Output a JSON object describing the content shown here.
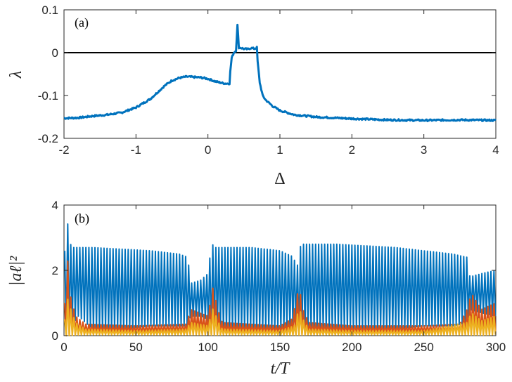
{
  "chart_data": [
    {
      "type": "line",
      "panel_label": "(a)",
      "xlabel": "Δ",
      "ylabel": "λ",
      "xlim": [
        -2,
        4
      ],
      "ylim": [
        -0.2,
        0.1
      ],
      "xticks": [
        -2,
        -1,
        0,
        1,
        2,
        3,
        4
      ],
      "yticks": [
        -0.2,
        -0.1,
        0,
        0.1
      ],
      "xtick_labels": [
        "-2",
        "-1",
        "0",
        "1",
        "2",
        "3",
        "4"
      ],
      "ytick_labels": [
        "-0.2",
        "-0.1",
        "0",
        "0.1"
      ],
      "reference_line_y": 0,
      "grid": false,
      "series": [
        {
          "color": "#0072BD",
          "x": [
            -2,
            -1.8,
            -1.6,
            -1.4,
            -1.2,
            -1.0,
            -0.8,
            -0.6,
            -0.5,
            -0.4,
            -0.3,
            -0.2,
            -0.1,
            0.0,
            0.1,
            0.15,
            0.2,
            0.25,
            0.3,
            0.31,
            0.33,
            0.36,
            0.39,
            0.41,
            0.43,
            0.46,
            0.5,
            0.55,
            0.6,
            0.65,
            0.68,
            0.69,
            0.72,
            0.76,
            0.8,
            0.9,
            1.0,
            1.2,
            1.5,
            2.0,
            2.5,
            3.0,
            3.5,
            4.0
          ],
          "y": [
            -0.153,
            -0.152,
            -0.148,
            -0.145,
            -0.14,
            -0.128,
            -0.108,
            -0.077,
            -0.065,
            -0.059,
            -0.056,
            -0.057,
            -0.058,
            -0.061,
            -0.067,
            -0.069,
            -0.071,
            -0.072,
            -0.072,
            -0.045,
            -0.012,
            0.0,
            0.005,
            0.064,
            0.012,
            0.011,
            0.009,
            0.008,
            0.011,
            0.009,
            0.012,
            -0.02,
            -0.07,
            -0.1,
            -0.11,
            -0.125,
            -0.135,
            -0.145,
            -0.15,
            -0.154,
            -0.157,
            -0.158,
            -0.157,
            -0.158
          ]
        }
      ]
    },
    {
      "type": "line",
      "panel_label": "(b)",
      "xlabel": "t/T",
      "ylabel": "|aℓ|²",
      "xlim": [
        0,
        300
      ],
      "ylim": [
        0,
        4
      ],
      "xticks": [
        0,
        50,
        100,
        150,
        200,
        250,
        300
      ],
      "yticks": [
        0,
        2,
        4
      ],
      "xtick_labels": [
        "0",
        "50",
        "100",
        "150",
        "200",
        "250",
        "300"
      ],
      "ytick_labels": [
        "0",
        "2",
        "4"
      ],
      "grid": false,
      "series": [
        {
          "color": "#0072BD",
          "description_of_envelope": "fast oscillation, period ~2.1",
          "envelope_x": [
            1,
            2,
            5,
            10,
            20,
            40,
            60,
            80,
            86,
            88,
            95,
            100,
            101,
            103,
            105,
            110,
            130,
            150,
            160,
            161,
            163,
            165,
            170,
            190,
            210,
            230,
            250,
            270,
            280,
            282,
            290,
            300
          ],
          "envelope_max": [
            2.6,
            3.6,
            2.7,
            2.7,
            2.7,
            2.65,
            2.6,
            2.5,
            2.4,
            1.6,
            1.7,
            1.9,
            2.3,
            2.8,
            2.7,
            2.7,
            2.7,
            2.6,
            2.4,
            1.5,
            2.6,
            2.8,
            2.8,
            2.8,
            2.75,
            2.7,
            2.6,
            2.5,
            2.4,
            1.8,
            1.9,
            2.0
          ],
          "envelope_min": [
            0.3,
            0.1,
            0.3,
            0.6,
            0.2,
            0.2,
            0.3,
            0.3,
            0.3,
            0.6,
            0.6,
            0.5,
            0.1,
            0.1,
            0.2,
            0.2,
            0.2,
            0.2,
            0.3,
            0.4,
            0.1,
            0.1,
            0.2,
            0.2,
            0.2,
            0.2,
            0.3,
            0.3,
            0.4,
            0.8,
            0.7,
            0.6
          ]
        },
        {
          "color": "#D95319",
          "description_of_envelope": "low oscillation with spikes",
          "envelope_x": [
            1,
            2,
            4,
            8,
            15,
            50,
            85,
            88,
            100,
            102,
            104,
            106,
            110,
            150,
            158,
            160,
            162,
            163,
            166,
            170,
            200,
            250,
            275,
            280,
            283,
            290,
            300
          ],
          "envelope_max": [
            1.0,
            2.7,
            1.3,
            0.6,
            0.35,
            0.3,
            0.35,
            0.8,
            0.6,
            1.1,
            1.6,
            0.9,
            0.4,
            0.3,
            0.5,
            0.8,
            1.2,
            1.6,
            0.8,
            0.4,
            0.3,
            0.3,
            0.35,
            0.8,
            1.3,
            0.8,
            1.0
          ],
          "envelope_min": [
            0.0,
            0.0,
            0.05,
            0.05,
            0.08,
            0.1,
            0.1,
            0.1,
            0.1,
            0.05,
            0.05,
            0.05,
            0.08,
            0.1,
            0.1,
            0.05,
            0.05,
            0.05,
            0.05,
            0.08,
            0.1,
            0.1,
            0.1,
            0.1,
            0.05,
            0.05,
            0.1
          ]
        },
        {
          "color": "#EDB120",
          "description_of_envelope": "smallest oscillation with spikes",
          "envelope_x": [
            1,
            2,
            4,
            8,
            15,
            50,
            85,
            88,
            100,
            102,
            104,
            106,
            110,
            150,
            160,
            162,
            163,
            166,
            170,
            200,
            250,
            280,
            283,
            290,
            300
          ],
          "envelope_max": [
            0.5,
            1.2,
            0.9,
            0.4,
            0.2,
            0.15,
            0.2,
            0.4,
            0.3,
            0.6,
            0.9,
            0.5,
            0.2,
            0.15,
            0.3,
            0.6,
            0.9,
            0.5,
            0.2,
            0.15,
            0.15,
            0.4,
            0.7,
            0.45,
            0.6
          ],
          "envelope_min": [
            0.0,
            0.0,
            0.0,
            0.02,
            0.03,
            0.03,
            0.03,
            0.03,
            0.03,
            0.02,
            0.02,
            0.02,
            0.03,
            0.03,
            0.02,
            0.02,
            0.02,
            0.02,
            0.03,
            0.03,
            0.03,
            0.03,
            0.02,
            0.02,
            0.03
          ]
        }
      ]
    }
  ]
}
